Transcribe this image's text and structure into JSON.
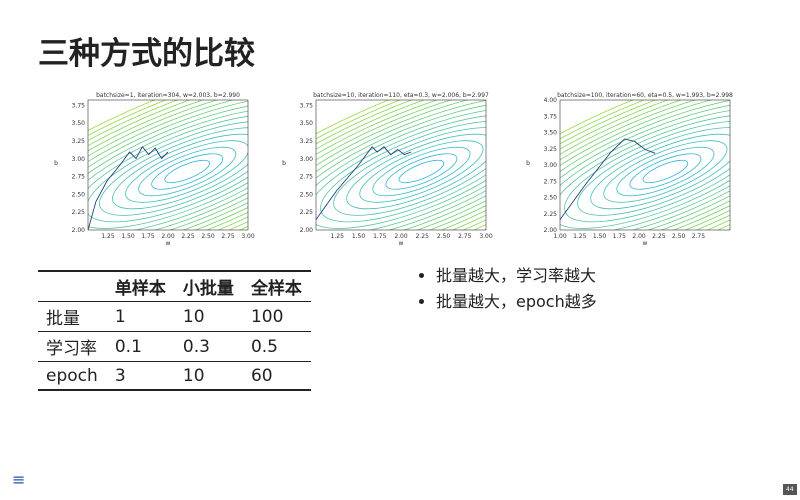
{
  "title": "三种方式的比较",
  "plots": [
    {
      "title": "batchsize=1, iteration=304, w=2.003, b=2.990",
      "xlabel": "w",
      "ylabel": "b",
      "xticks": [
        "1.25",
        "1.50",
        "1.75",
        "2.00",
        "2.25",
        "2.50",
        "2.75",
        "3.00"
      ],
      "yticks": [
        "2.00",
        "2.25",
        "2.50",
        "2.75",
        "3.00",
        "3.25",
        "3.50",
        "3.75"
      ]
    },
    {
      "title": "batchsize=10, iteration=110, eta=0.3, w=2.006, b=2.997",
      "xlabel": "w",
      "ylabel": "b",
      "xticks": [
        "1.25",
        "1.50",
        "1.75",
        "2.00",
        "2.25",
        "2.50",
        "2.75",
        "3.00"
      ],
      "yticks": [
        "2.00",
        "2.25",
        "2.50",
        "2.75",
        "3.00",
        "3.25",
        "3.50",
        "3.75"
      ]
    },
    {
      "title": "batchsize=100, iteration=60, eta=0.5, w=1.993, b=2.998",
      "xlabel": "w",
      "ylabel": "b",
      "xticks": [
        "1.00",
        "1.25",
        "1.50",
        "1.75",
        "2.00",
        "2.25",
        "2.50",
        "2.75"
      ],
      "yticks": [
        "2.00",
        "2.25",
        "2.50",
        "2.75",
        "3.00",
        "3.25",
        "3.50",
        "3.75",
        "4.00"
      ]
    }
  ],
  "table": {
    "header": [
      "",
      "单样本",
      "小批量",
      "全样本"
    ],
    "rows": [
      [
        "批量",
        "1",
        "10",
        "100"
      ],
      [
        "学习率",
        "0.1",
        "0.3",
        "0.5"
      ],
      [
        "epoch",
        "3",
        "10",
        "60"
      ]
    ]
  },
  "bullets": [
    "批量越大，学习率越大",
    "批量越大，epoch越多"
  ],
  "page_number": "44"
}
